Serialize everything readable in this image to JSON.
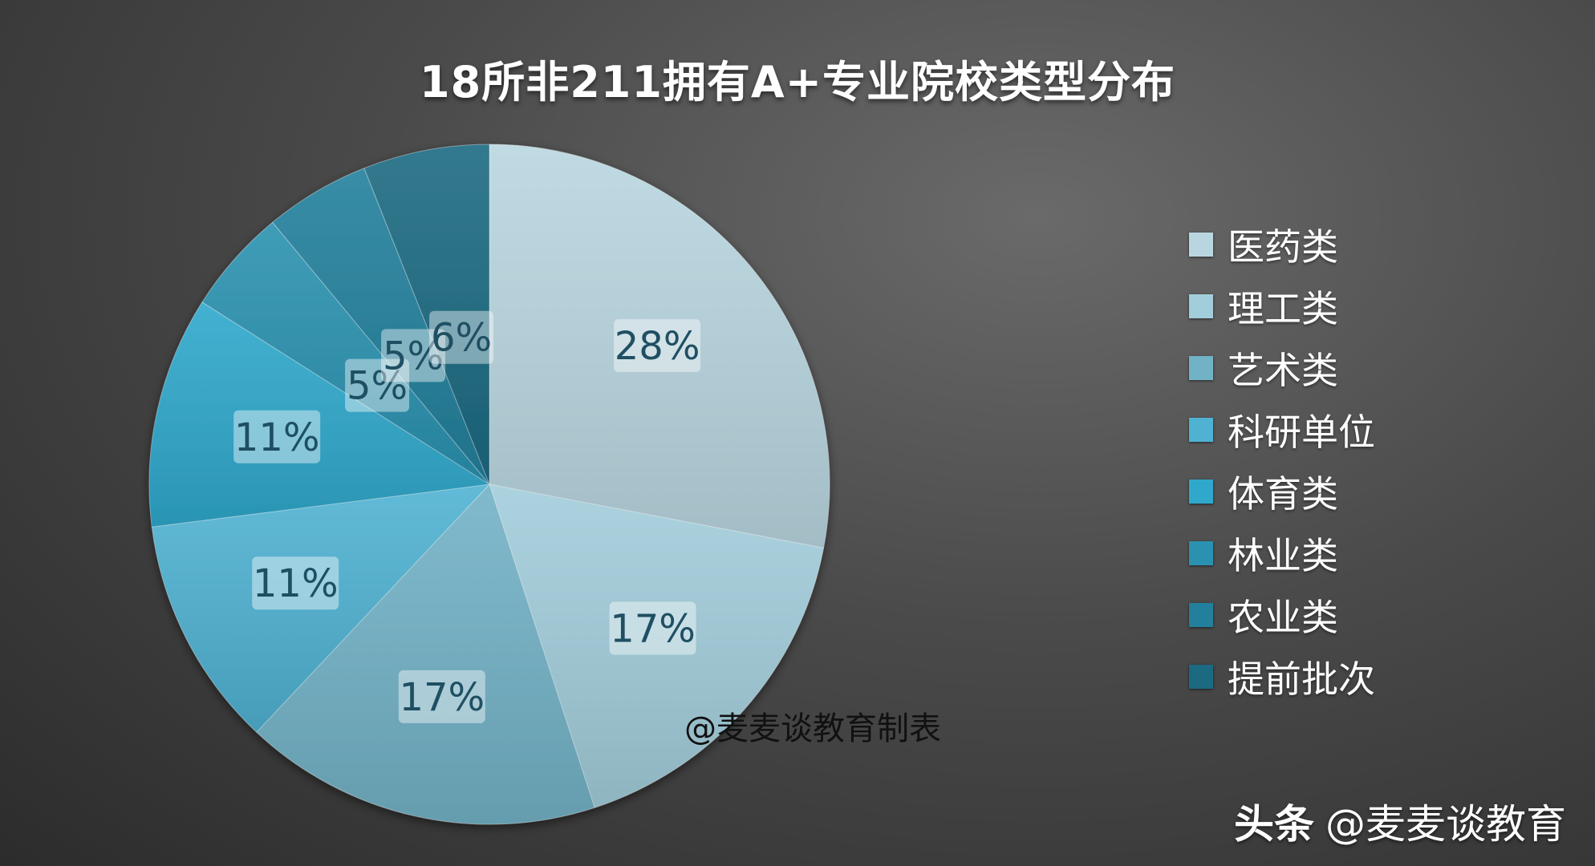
{
  "chart_data": {
    "type": "pie",
    "title": "18所非211拥有A+专业院校类型分布",
    "categories": [
      "医药类",
      "理工类",
      "艺术类",
      "科研单位",
      "体育类",
      "林业类",
      "农业类",
      "提前批次"
    ],
    "values": [
      28,
      17,
      17,
      11,
      11,
      5,
      5,
      6
    ],
    "data_labels": [
      "28%",
      "17%",
      "17%",
      "11%",
      "11%",
      "5%",
      "5%",
      "6%"
    ],
    "unit": "%",
    "colors": [
      "#b9d6e0",
      "#a2cddb",
      "#72b2c6",
      "#4fb2d2",
      "#2fa8cc",
      "#2a92b0",
      "#22809c",
      "#1c6a82"
    ],
    "legend": {
      "position": "right"
    }
  },
  "watermarks": {
    "inner": "@麦麦谈教育制表",
    "platform": "头条",
    "account": "@麦麦谈教育"
  }
}
